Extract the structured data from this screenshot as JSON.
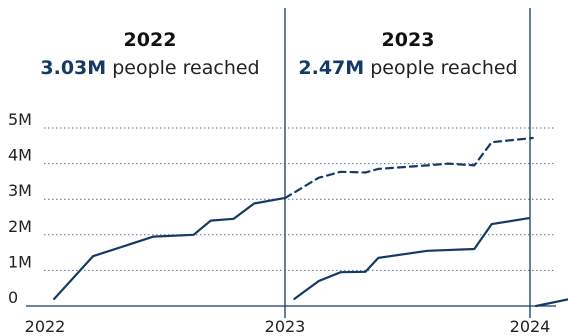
{
  "chart_data": {
    "type": "line",
    "title": "",
    "xlabel": "",
    "ylabel": "",
    "x_ticks": [
      "2022",
      "2023",
      "2024"
    ],
    "y_ticks": [
      "0",
      "1M",
      "2M",
      "3M",
      "4M",
      "5M"
    ],
    "y_tick_values": [
      0,
      1000000,
      2000000,
      3000000,
      4000000,
      5000000
    ],
    "ylim": [
      0,
      5000000
    ],
    "xlim": [
      "2022-01-01",
      "2024-03-01"
    ],
    "grid": true,
    "panels": [
      {
        "year": "2022",
        "reach_value": "3.03M",
        "reach_text": " people reached"
      },
      {
        "year": "2023",
        "reach_value": "2.47M",
        "reach_text": " people reached"
      }
    ],
    "dividers": [
      "2023-01-01",
      "2024-01-01"
    ],
    "series": [
      {
        "style": "solid",
        "points": [
          [
            "2022-01-15",
            200000
          ],
          [
            "2022-03-15",
            1400000
          ],
          [
            "2022-06-15",
            1950000
          ],
          [
            "2022-08-15",
            2000000
          ],
          [
            "2022-09-10",
            2400000
          ],
          [
            "2022-10-15",
            2450000
          ],
          [
            "2022-11-15",
            2880000
          ],
          [
            "2022-12-31",
            3030000
          ]
        ]
      },
      {
        "style": "solid",
        "points": [
          [
            "2023-01-15",
            200000
          ],
          [
            "2023-02-20",
            700000
          ],
          [
            "2023-03-25",
            950000
          ],
          [
            "2023-05-01",
            960000
          ],
          [
            "2023-05-20",
            1350000
          ],
          [
            "2023-08-01",
            1550000
          ],
          [
            "2023-10-10",
            1600000
          ],
          [
            "2023-11-05",
            2300000
          ],
          [
            "2023-12-31",
            2470000
          ]
        ]
      },
      {
        "style": "dashed",
        "points": [
          [
            "2023-01-01",
            3030000
          ],
          [
            "2023-02-20",
            3600000
          ],
          [
            "2023-03-25",
            3770000
          ],
          [
            "2023-05-01",
            3750000
          ],
          [
            "2023-05-20",
            3850000
          ],
          [
            "2023-08-01",
            3950000
          ],
          [
            "2023-09-01",
            4000000
          ],
          [
            "2023-10-10",
            3950000
          ],
          [
            "2023-11-05",
            4600000
          ],
          [
            "2024-01-05",
            4720000
          ]
        ]
      },
      {
        "style": "solid",
        "points": [
          [
            "2024-01-10",
            0
          ],
          [
            "2024-03-01",
            200000
          ]
        ]
      }
    ]
  }
}
